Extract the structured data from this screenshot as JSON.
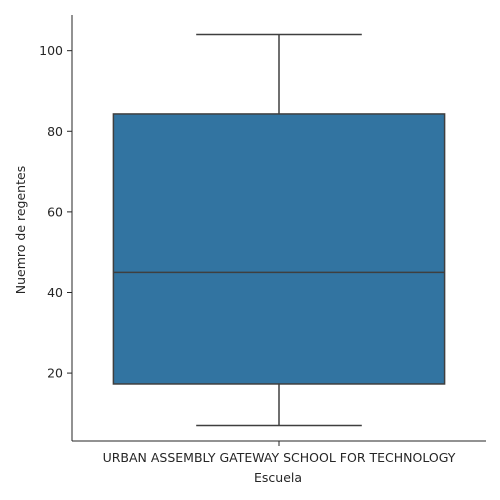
{
  "chart_data": {
    "type": "box",
    "xlabel": "Escuela",
    "ylabel": "Nuemro de regentes",
    "categories": [
      "URBAN ASSEMBLY GATEWAY SCHOOL FOR TECHNOLOGY"
    ],
    "boxes": [
      {
        "category": "URBAN ASSEMBLY GATEWAY SCHOOL FOR TECHNOLOGY",
        "whisker_low": 7,
        "q1": 17.3,
        "median": 45,
        "q3": 84.3,
        "whisker_high": 104
      }
    ],
    "yticks": [
      20,
      40,
      60,
      80,
      100
    ],
    "ylim": [
      3.15,
      108.85
    ],
    "box_color": "#3274a1",
    "line_color": "#3f3f3f",
    "grid": false
  }
}
